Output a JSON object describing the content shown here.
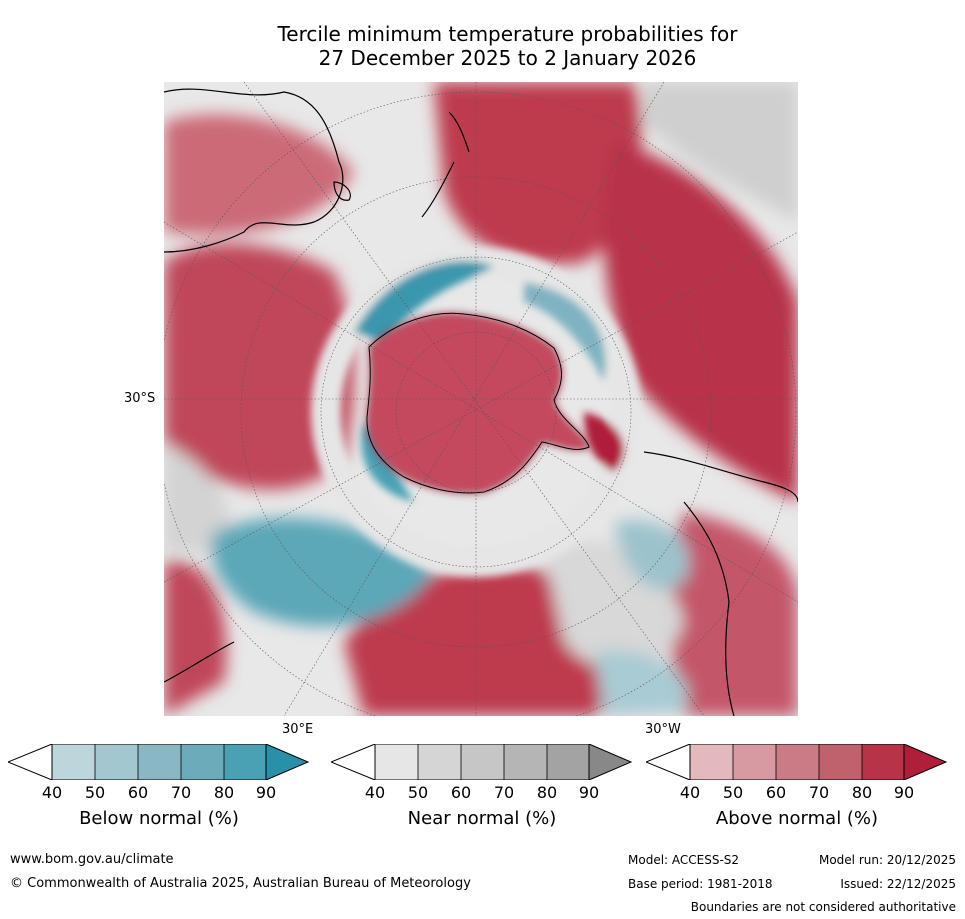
{
  "title_line1": "Tercile minimum temperature probabilities for",
  "title_line2": "27 December 2025 to 2 January 2026",
  "map": {
    "projection": "south-polar-stereographic",
    "labels": {
      "lat_30s": "30°S",
      "lon_30e": "30°E",
      "lon_30w": "30°W"
    },
    "colors": {
      "below": [
        "#bcd6dc",
        "#a3c7cf",
        "#89b7c3",
        "#6cacba",
        "#4aa1b4",
        "#2a8fa8"
      ],
      "near": [
        "#e6e6e6",
        "#d5d5d5",
        "#c6c6c6",
        "#b5b5b5",
        "#a3a3a3",
        "#888888"
      ],
      "above": [
        "#e4b9be",
        "#d89aa2",
        "#ca7b86",
        "#c0616e",
        "#b73448",
        "#b01f3a"
      ],
      "land": "#000000",
      "background": "#ffffff"
    }
  },
  "colorbars": [
    {
      "name": "below",
      "label": "Below normal (%)",
      "ticks": [
        "40",
        "50",
        "60",
        "70",
        "80",
        "90"
      ]
    },
    {
      "name": "near",
      "label": "Near normal (%)",
      "ticks": [
        "40",
        "50",
        "60",
        "70",
        "80",
        "90"
      ]
    },
    {
      "name": "above",
      "label": "Above normal (%)",
      "ticks": [
        "40",
        "50",
        "60",
        "70",
        "80",
        "90"
      ]
    }
  ],
  "footer": {
    "website": "www.bom.gov.au/climate",
    "copyright": "© Commonwealth of Australia 2025, Australian Bureau of Meteorology",
    "model": "Model: ACCESS-S2",
    "model_run": "Model run: 20/12/2025",
    "base_period": "Base period: 1981-2018",
    "issued": "Issued: 22/12/2025",
    "disclaimer": "Boundaries are not considered authoritative"
  }
}
